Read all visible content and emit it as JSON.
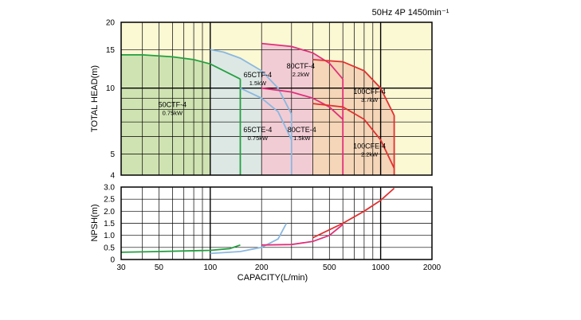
{
  "chart_data": [
    {
      "type": "area",
      "title": "50Hz 4P 1450min⁻¹",
      "xlabel": "CAPACITY(L/min)",
      "ylabel": "TOTAL HEAD(m)",
      "x_scale": "log",
      "y_scale": "log",
      "xlim": [
        30,
        2000
      ],
      "ylim": [
        4,
        20
      ],
      "grid": true,
      "y_ticks": [
        "4",
        "5",
        "10",
        "15",
        "20"
      ],
      "x_ticks": [
        "30",
        "50",
        "100",
        "200",
        "500",
        "1000",
        "2000"
      ],
      "zones": [
        {
          "name": "50CTF-4",
          "power": "0.75kW",
          "color": "#cfe3b2",
          "edge": "#22a040",
          "x": [
            30,
            40,
            60,
            80,
            100,
            150
          ],
          "y": [
            14.2,
            14.2,
            13.9,
            13.5,
            12.9,
            11.0
          ],
          "q_max": 150
        },
        {
          "name": "65CTF-4",
          "power": "1.5kW",
          "color": "#dde8e4",
          "edge": "#8ab8e0",
          "x": [
            100,
            120,
            150,
            200,
            250,
            300
          ],
          "y": [
            15.0,
            14.6,
            13.7,
            12.0,
            10.0,
            7.6
          ],
          "q_max": 300
        },
        {
          "name": "65CTE-4",
          "power": "0.75kW",
          "color": "#dde8e4",
          "edge": "#8ab8e0",
          "x": [
            150,
            200,
            250,
            300
          ],
          "y": [
            10.0,
            9.0,
            7.8,
            5.8
          ]
        },
        {
          "name": "80CTF-4",
          "power": "2.2kW",
          "color": "#f2ccd4",
          "edge": "#e0307a",
          "x": [
            200,
            300,
            400,
            500,
            600
          ],
          "y": [
            16.0,
            15.5,
            14.5,
            13.0,
            11.0
          ],
          "q_max": 600
        },
        {
          "name": "80CTE-4",
          "power": "1.5kW",
          "color": "#f2ccd4",
          "edge": "#e0307a",
          "x": [
            200,
            300,
            400,
            500,
            600
          ],
          "y": [
            10.0,
            9.6,
            9.0,
            8.2,
            7.2
          ]
        },
        {
          "name": "100CFF-4",
          "power": "3.7kW",
          "color": "#f5d6b8",
          "edge": "#e23030",
          "x": [
            400,
            600,
            800,
            1000,
            1200
          ],
          "y": [
            13.5,
            13.2,
            12.0,
            10.0,
            7.5
          ],
          "q_max": 1200
        },
        {
          "name": "100CFE-4",
          "power": "2.2kW",
          "color": "#f5d6b8",
          "edge": "#e23030",
          "x": [
            400,
            600,
            800,
            1000,
            1200
          ],
          "y": [
            8.5,
            8.2,
            7.2,
            5.8,
            4.3
          ]
        }
      ]
    },
    {
      "type": "line",
      "xlabel": "CAPACITY(L/min)",
      "ylabel": "NPSH(m)",
      "x_scale": "log",
      "xlim": [
        30,
        2000
      ],
      "ylim": [
        0,
        3.0
      ],
      "grid": true,
      "y_ticks": [
        "0",
        "0.5",
        "1.0",
        "1.5",
        "2.0",
        "2.5",
        "3.0"
      ],
      "x_ticks": [
        "30",
        "50",
        "100",
        "200",
        "500",
        "1000",
        "2000"
      ],
      "series": [
        {
          "name": "50CTF-4",
          "color": "#22a040",
          "x": [
            30,
            50,
            100,
            130,
            150
          ],
          "y": [
            0.3,
            0.33,
            0.38,
            0.45,
            0.6
          ]
        },
        {
          "name": "65CTF-4",
          "color": "#8ab8e0",
          "x": [
            100,
            150,
            200,
            250,
            280
          ],
          "y": [
            0.25,
            0.33,
            0.5,
            0.85,
            1.5
          ]
        },
        {
          "name": "80CTF-4",
          "color": "#e0307a",
          "x": [
            200,
            300,
            400,
            500,
            600
          ],
          "y": [
            0.6,
            0.62,
            0.75,
            1.0,
            1.45
          ]
        },
        {
          "name": "100CFF-4",
          "color": "#e23030",
          "x": [
            400,
            600,
            800,
            1000,
            1200
          ],
          "y": [
            0.9,
            1.5,
            2.0,
            2.45,
            2.95
          ]
        }
      ]
    }
  ]
}
